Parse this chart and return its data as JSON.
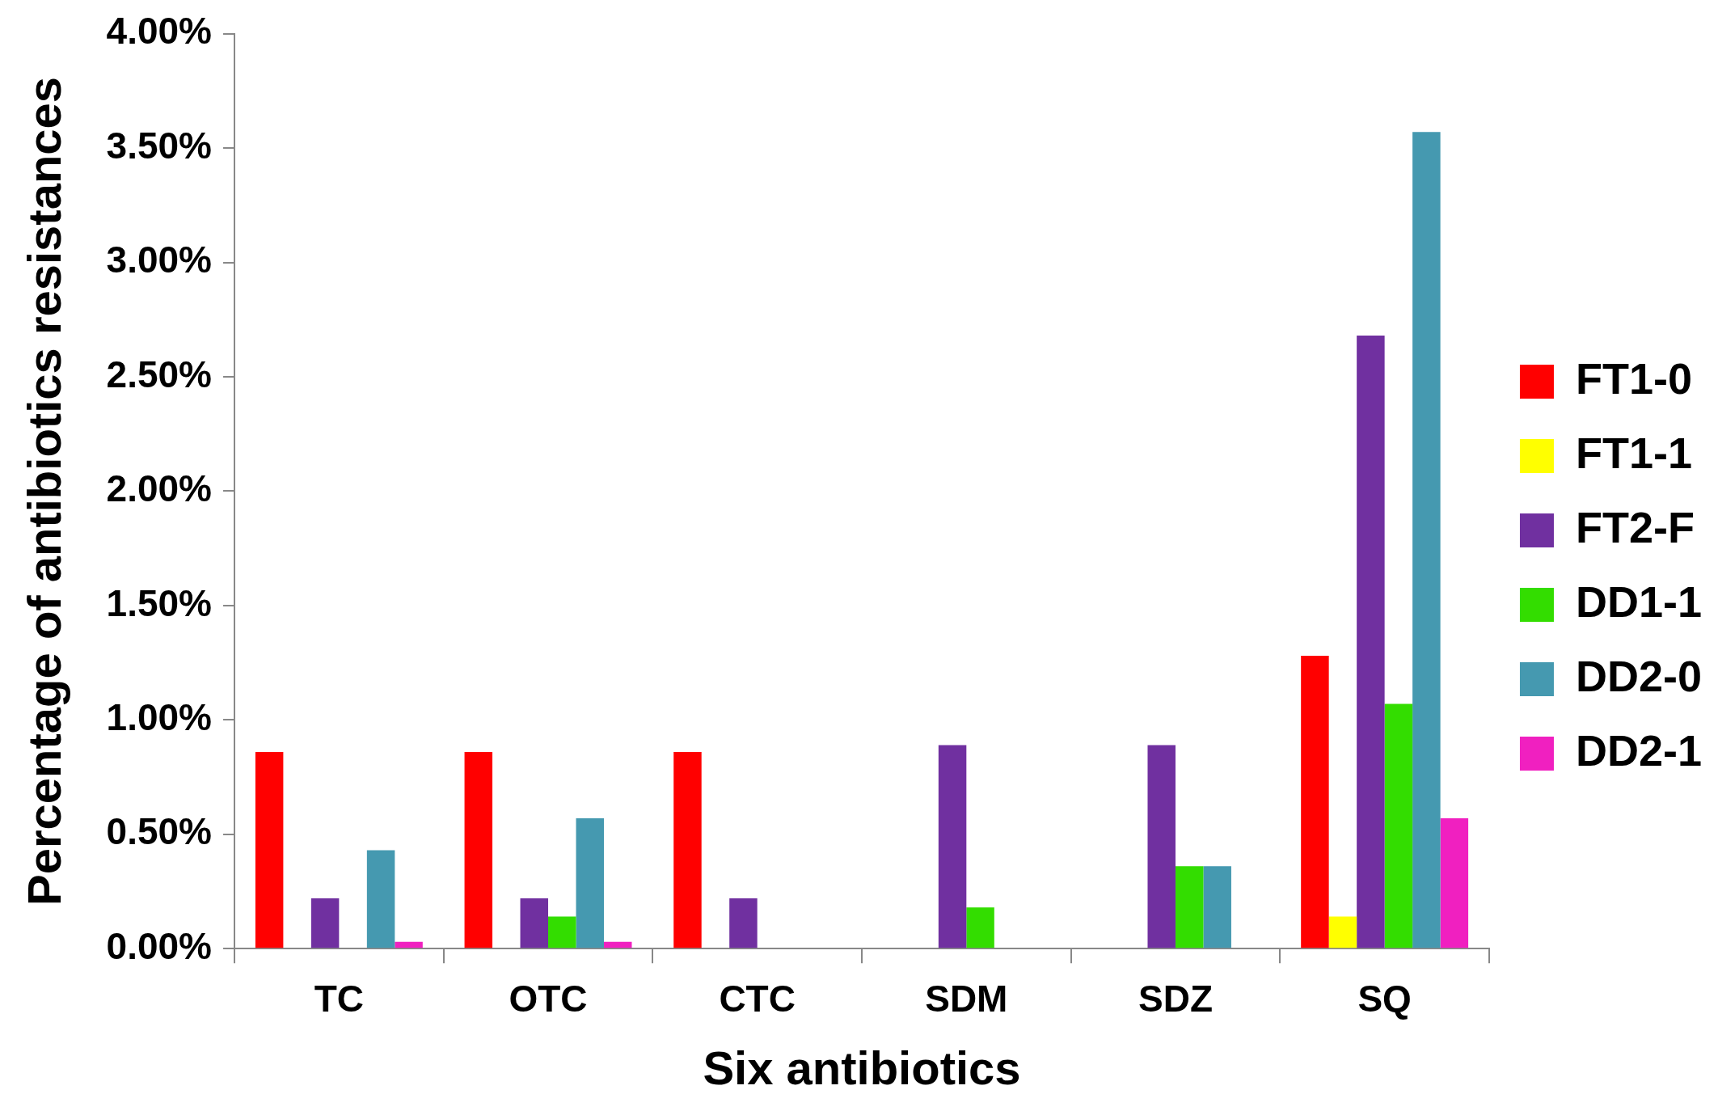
{
  "chart_data": {
    "type": "bar",
    "xlabel": "Six antibiotics",
    "ylabel": "Percentage of antibiotics resistances",
    "categories": [
      "TC",
      "OTC",
      "CTC",
      "SDM",
      "SDZ",
      "SQ"
    ],
    "series": [
      {
        "name": "FT1-0",
        "color": "#ff0000",
        "values": [
          0.86,
          0.86,
          0.86,
          0,
          0,
          1.28
        ]
      },
      {
        "name": "FT1-1",
        "color": "#ffff00",
        "values": [
          0,
          0,
          0,
          0,
          0,
          0.14
        ]
      },
      {
        "name": "FT2-F",
        "color": "#7030a0",
        "values": [
          0.22,
          0.22,
          0.22,
          0.89,
          0.89,
          2.68
        ]
      },
      {
        "name": "DD1-1",
        "color": "#33dd00",
        "values": [
          0,
          0.14,
          0,
          0.18,
          0.36,
          1.07
        ]
      },
      {
        "name": "DD2-0",
        "color": "#4599b0",
        "values": [
          0.43,
          0.57,
          0,
          0,
          0.36,
          3.57
        ]
      },
      {
        "name": "DD2-1",
        "color": "#f020c0",
        "values": [
          0.03,
          0.03,
          0,
          0,
          0,
          0.57
        ]
      }
    ],
    "ylim": [
      0,
      4
    ],
    "yticks": [
      {
        "value": 0,
        "label": "0.00%"
      },
      {
        "value": 0.5,
        "label": "0.50%"
      },
      {
        "value": 1,
        "label": "1.00%"
      },
      {
        "value": 1.5,
        "label": "1.50%"
      },
      {
        "value": 2,
        "label": "2.00%"
      },
      {
        "value": 2.5,
        "label": "2.50%"
      },
      {
        "value": 3,
        "label": "3.00%"
      },
      {
        "value": 3.5,
        "label": "3.50%"
      },
      {
        "value": 4,
        "label": "4.00%"
      }
    ],
    "grid": false,
    "legend": "right"
  }
}
